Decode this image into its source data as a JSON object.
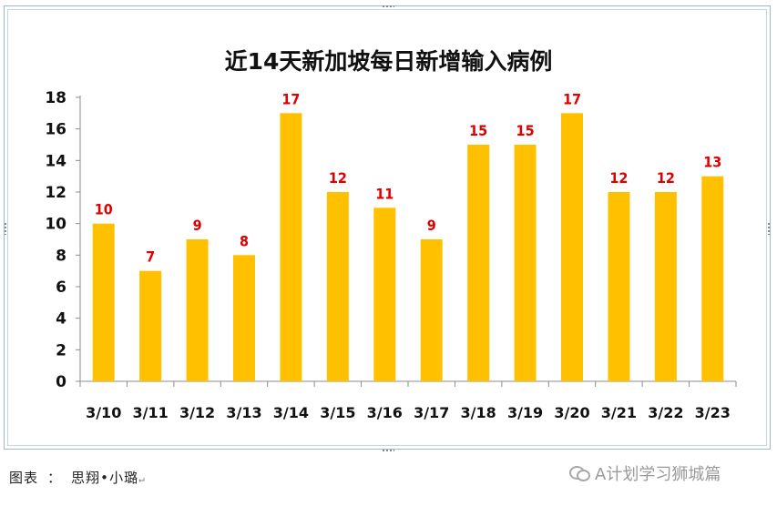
{
  "chart_data": {
    "type": "bar",
    "title": "近14天新加坡每日新增输入病例",
    "categories": [
      "3/10",
      "3/11",
      "3/12",
      "3/13",
      "3/14",
      "3/15",
      "3/16",
      "3/17",
      "3/18",
      "3/19",
      "3/20",
      "3/21",
      "3/22",
      "3/23"
    ],
    "values": [
      10,
      7,
      9,
      8,
      17,
      12,
      11,
      9,
      15,
      15,
      17,
      12,
      12,
      13
    ],
    "xlabel": "",
    "ylabel": "",
    "ylim": [
      0,
      18
    ],
    "yticks": [
      0,
      2,
      4,
      6,
      8,
      10,
      12,
      14,
      16,
      18
    ],
    "grid": false,
    "legend": "none",
    "bar_color": "#FFC000",
    "label_color": "#E00000"
  },
  "caption": "图表 ： 思翔•小璐",
  "caption_mark": "↵",
  "watermark": "A计划学习狮城篇"
}
